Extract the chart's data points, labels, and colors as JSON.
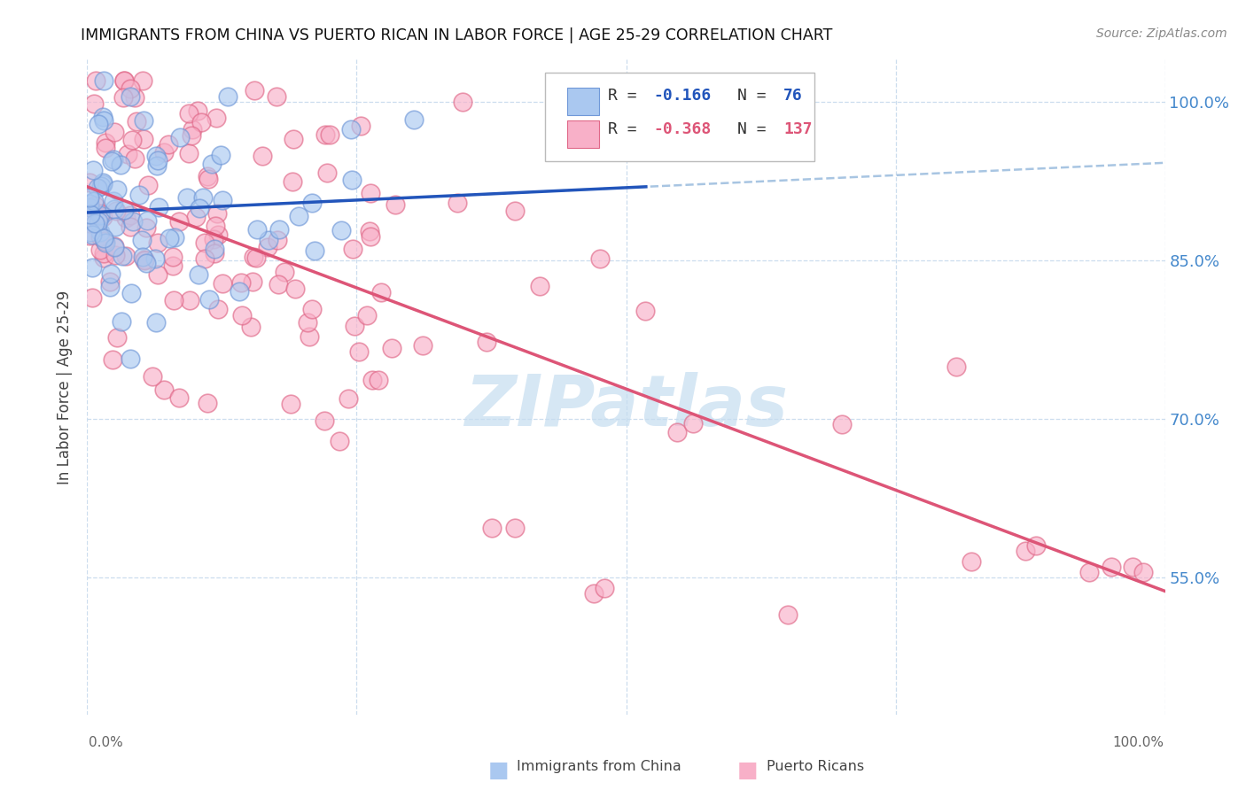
{
  "title": "IMMIGRANTS FROM CHINA VS PUERTO RICAN IN LABOR FORCE | AGE 25-29 CORRELATION CHART",
  "source": "Source: ZipAtlas.com",
  "ylabel": "In Labor Force | Age 25-29",
  "xmin": 0.0,
  "xmax": 1.0,
  "ymin": 0.42,
  "ymax": 1.04,
  "legend_r_china": "-0.166",
  "legend_n_china": "76",
  "legend_r_puerto": "-0.368",
  "legend_n_puerto": "137",
  "color_china_fill": "#aac8f0",
  "color_china_edge": "#7098d8",
  "color_puerto_fill": "#f8b0c8",
  "color_puerto_edge": "#e06888",
  "color_china_line": "#2255bb",
  "color_puerto_line": "#dd5577",
  "color_dashed": "#99bbdd",
  "watermark_color": "#c5ddf0",
  "background_color": "#ffffff",
  "right_ytick_color": "#4488cc",
  "grid_color": "#ccddee",
  "title_color": "#111111",
  "source_color": "#888888",
  "ylabel_color": "#444444",
  "n_china": 76,
  "n_puerto": 137,
  "r_china": -0.166,
  "r_puerto": -0.368,
  "china_seed": 42,
  "puerto_seed": 99
}
